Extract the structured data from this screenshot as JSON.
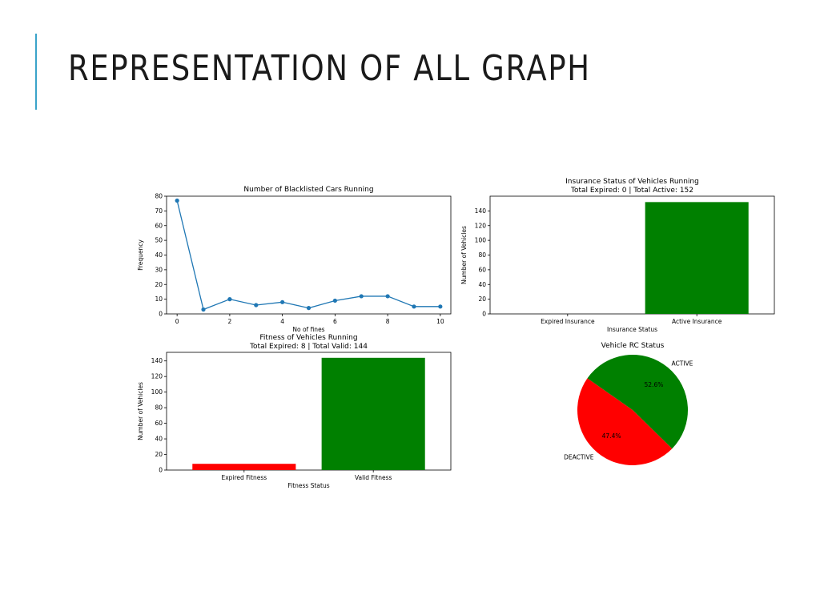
{
  "slide": {
    "title": "REPRESENTATION OF ALL GRAPH"
  },
  "colors": {
    "accent": "#3aa3c9",
    "line": "#1f77b4",
    "red": "#ff0000",
    "green": "#008000"
  },
  "chart_data": [
    {
      "type": "line",
      "title": "Number of Blacklisted Cars Running",
      "xlabel": "No of fines",
      "ylabel": "Frequency",
      "x": [
        0,
        1,
        2,
        3,
        4,
        5,
        6,
        7,
        8,
        9,
        10
      ],
      "y": [
        77,
        3,
        10,
        6,
        8,
        4,
        9,
        12,
        12,
        5,
        5
      ],
      "xlim": [
        -0.4,
        10.4
      ],
      "ylim": [
        0,
        80
      ],
      "xticks": [
        0,
        2,
        4,
        6,
        8,
        10
      ],
      "yticks": [
        0,
        10,
        20,
        30,
        40,
        50,
        60,
        70,
        80
      ],
      "marker": "circle",
      "color": "#1f77b4",
      "grid": false
    },
    {
      "type": "bar",
      "title": "Insurance Status of Vehicles Running",
      "subtitle": "Total Expired: 0 | Total Active: 152",
      "xlabel": "Insurance Status",
      "ylabel": "Number of Vehicles",
      "categories": [
        "Expired Insurance",
        "Active Insurance"
      ],
      "values": [
        0,
        152
      ],
      "colors": [
        "#ff0000",
        "#008000"
      ],
      "ylim": [
        0,
        160
      ],
      "yticks": [
        0,
        20,
        40,
        60,
        80,
        100,
        120,
        140
      ],
      "grid": false
    },
    {
      "type": "bar",
      "title": "Fitness of Vehicles Running",
      "subtitle": "Total Expired: 8 | Total Valid: 144",
      "xlabel": "Fitness Status",
      "ylabel": "Number of Vehicles",
      "categories": [
        "Expired Fitness",
        "Valid Fitness"
      ],
      "values": [
        8,
        144
      ],
      "colors": [
        "#ff0000",
        "#008000"
      ],
      "ylim": [
        0,
        151
      ],
      "yticks": [
        0,
        20,
        40,
        60,
        80,
        100,
        120,
        140
      ],
      "grid": false
    },
    {
      "type": "pie",
      "title": "Vehicle RC Status",
      "labels": [
        "DEACTIVE",
        "ACTIVE"
      ],
      "values": [
        47.4,
        52.6
      ],
      "pct_labels": [
        "47.4%",
        "52.6%"
      ],
      "colors": [
        "#ff0000",
        "#008000"
      ],
      "startangle_deg": 145
    }
  ]
}
